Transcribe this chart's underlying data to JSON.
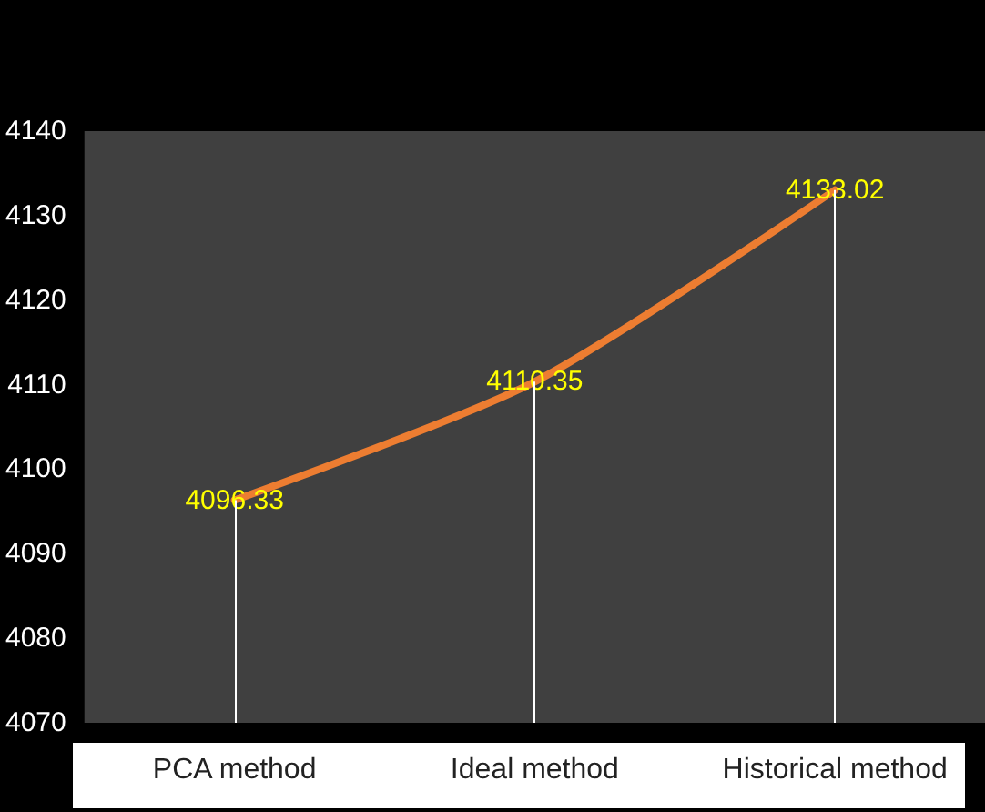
{
  "chart_data": {
    "type": "line",
    "categories": [
      "PCA method",
      "Ideal method",
      "Historical method"
    ],
    "series": [
      {
        "color": "#ed7d31",
        "values": [
          4096.33,
          4110.35,
          4133.02
        ]
      }
    ],
    "ylim": [
      4070,
      4140
    ],
    "yticks": [
      4070,
      4080,
      4090,
      4100,
      4110,
      4120,
      4130,
      4140
    ],
    "grid": "x",
    "data_labels": true,
    "marker": "none",
    "line_style": "solid"
  }
}
